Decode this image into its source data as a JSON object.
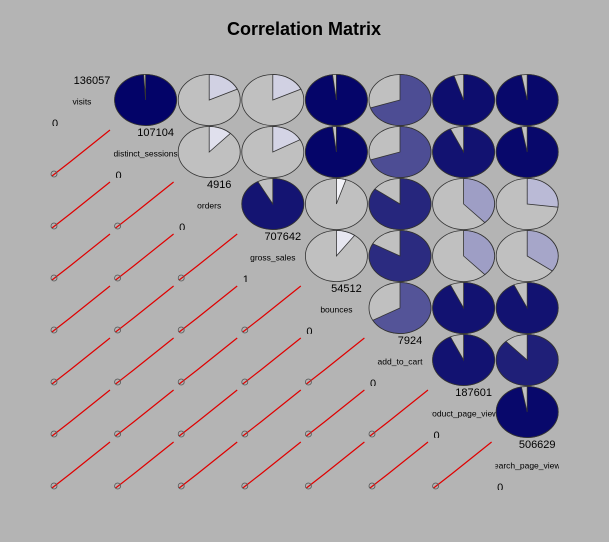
{
  "chart_data": {
    "type": "corrgram",
    "title": "Correlation Matrix",
    "variables": [
      {
        "name": "visits",
        "max": 136057,
        "min": 0
      },
      {
        "name": "distinct_sessions",
        "max": 107104,
        "min": 0
      },
      {
        "name": "orders",
        "max": 4916,
        "min": 0
      },
      {
        "name": "gross_sales",
        "max": 707642,
        "min": 1
      },
      {
        "name": "bounces",
        "max": 54512,
        "min": 0
      },
      {
        "name": "add_to_cart",
        "max": 7924,
        "min": 0
      },
      {
        "name": "product_page_views",
        "max": 187601,
        "min": 0
      },
      {
        "name": "search_page_views",
        "max": 506629,
        "min": 0
      }
    ],
    "correlations": [
      [
        0.99,
        0.18,
        0.18,
        0.98,
        0.7,
        0.95,
        0.97
      ],
      [
        0.12,
        0.17,
        0.98,
        0.7,
        0.93,
        0.97
      ],
      [
        0.92,
        0.05,
        0.85,
        0.38,
        0.27
      ],
      [
        0.1,
        0.83,
        0.38,
        0.35
      ],
      [
        0.67,
        0.93,
        0.93
      ],
      [
        0.93,
        0.88
      ],
      [
        0.97
      ]
    ],
    "color_low": "#ffffff",
    "color_high": "#000066"
  }
}
